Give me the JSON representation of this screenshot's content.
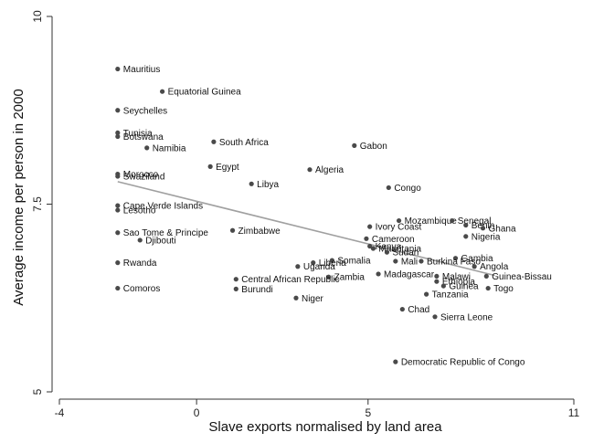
{
  "chart_data": {
    "type": "scatter",
    "title": "",
    "xlabel": "Slave exports normalised by land area",
    "ylabel": "Average income per person in 2000",
    "xlim": [
      -4,
      11
    ],
    "ylim": [
      5,
      10
    ],
    "xticks": [
      -4,
      0,
      5,
      11
    ],
    "yticks": [
      5,
      7.5,
      10
    ],
    "grid": false,
    "legend": "none",
    "colors": {
      "point": "#4a4a4a",
      "fit_line": "#a0a0a0",
      "axis": "#333333"
    },
    "fit_line": {
      "x": [
        -2.3,
        8.7
      ],
      "y": [
        7.8,
        6.55
      ]
    },
    "points": [
      {
        "label": "Mauritius",
        "x": -2.3,
        "y": 9.3
      },
      {
        "label": "Equatorial Guinea",
        "x": -1.0,
        "y": 9.0
      },
      {
        "label": "Seychelles",
        "x": -2.3,
        "y": 8.75
      },
      {
        "label": "Tunisia",
        "x": -2.3,
        "y": 8.45
      },
      {
        "label": "Botswana",
        "x": -2.3,
        "y": 8.4
      },
      {
        "label": "Namibia",
        "x": -1.45,
        "y": 8.25
      },
      {
        "label": "South Africa",
        "x": 0.5,
        "y": 8.33
      },
      {
        "label": "Gabon",
        "x": 4.6,
        "y": 8.28
      },
      {
        "label": "Egypt",
        "x": 0.4,
        "y": 8.0
      },
      {
        "label": "Algeria",
        "x": 3.3,
        "y": 7.96
      },
      {
        "label": "Morocco",
        "x": -2.3,
        "y": 7.9
      },
      {
        "label": "Swaziland",
        "x": -2.3,
        "y": 7.87
      },
      {
        "label": "Libya",
        "x": 1.6,
        "y": 7.77
      },
      {
        "label": "Congo",
        "x": 5.6,
        "y": 7.72
      },
      {
        "label": "Cape Verde Islands",
        "x": -2.3,
        "y": 7.48
      },
      {
        "label": "Lesotho",
        "x": -2.3,
        "y": 7.42
      },
      {
        "label": "Sao Tome & Principe",
        "x": -2.3,
        "y": 7.12
      },
      {
        "label": "Djibouti",
        "x": -1.65,
        "y": 7.02
      },
      {
        "label": "Zimbabwe",
        "x": 1.05,
        "y": 7.15
      },
      {
        "label": "Ivory Coast",
        "x": 5.05,
        "y": 7.2
      },
      {
        "label": "Mozambique",
        "x": 5.9,
        "y": 7.28
      },
      {
        "label": "Senegal",
        "x": 7.45,
        "y": 7.28
      },
      {
        "label": "Benin",
        "x": 7.85,
        "y": 7.22
      },
      {
        "label": "Ghana",
        "x": 8.35,
        "y": 7.18
      },
      {
        "label": "Nigeria",
        "x": 7.85,
        "y": 7.07
      },
      {
        "label": "Cameroon",
        "x": 4.95,
        "y": 7.04
      },
      {
        "label": "Kenya",
        "x": 5.05,
        "y": 6.94
      },
      {
        "label": "Mauritania",
        "x": 5.15,
        "y": 6.91
      },
      {
        "label": "Sudan",
        "x": 5.55,
        "y": 6.86
      },
      {
        "label": "Gambia",
        "x": 7.55,
        "y": 6.78
      },
      {
        "label": "Mali",
        "x": 5.8,
        "y": 6.74
      },
      {
        "label": "Burkina Faso",
        "x": 6.55,
        "y": 6.74
      },
      {
        "label": "Angola",
        "x": 8.1,
        "y": 6.67
      },
      {
        "label": "Rwanda",
        "x": -2.3,
        "y": 6.72
      },
      {
        "label": "Somalia",
        "x": 3.95,
        "y": 6.75
      },
      {
        "label": "Liberia",
        "x": 3.4,
        "y": 6.72
      },
      {
        "label": "Uganda",
        "x": 2.95,
        "y": 6.67
      },
      {
        "label": "Madagascar",
        "x": 5.3,
        "y": 6.57
      },
      {
        "label": "Malawi",
        "x": 7.0,
        "y": 6.54
      },
      {
        "label": "Guinea-Bissau",
        "x": 8.45,
        "y": 6.54
      },
      {
        "label": "Ethiopia",
        "x": 7.0,
        "y": 6.47
      },
      {
        "label": "Zambia",
        "x": 3.85,
        "y": 6.53
      },
      {
        "label": "Central African Republic",
        "x": 1.15,
        "y": 6.5
      },
      {
        "label": "Guinea",
        "x": 7.2,
        "y": 6.41
      },
      {
        "label": "Togo",
        "x": 8.5,
        "y": 6.38
      },
      {
        "label": "Comoros",
        "x": -2.3,
        "y": 6.38
      },
      {
        "label": "Burundi",
        "x": 1.15,
        "y": 6.37
      },
      {
        "label": "Tanzania",
        "x": 6.7,
        "y": 6.3
      },
      {
        "label": "Niger",
        "x": 2.9,
        "y": 6.25
      },
      {
        "label": "Chad",
        "x": 6.0,
        "y": 6.1
      },
      {
        "label": "Sierra Leone",
        "x": 6.95,
        "y": 6.0
      },
      {
        "label": "Democratic Republic of Congo",
        "x": 5.8,
        "y": 5.4
      }
    ]
  }
}
